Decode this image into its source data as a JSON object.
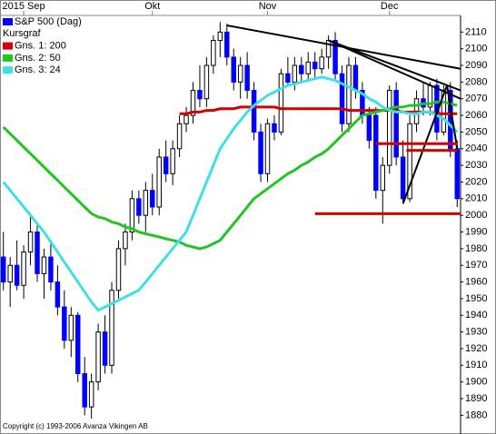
{
  "chart_data": {
    "type": "candlestick",
    "legend": [
      "S&P 500 (Dag)",
      "Kursgraf"
    ],
    "copyright": "Copyright (c) 1993-2006 Avanza Vikingen AB",
    "xlim": [
      -0.5,
      67.5
    ],
    "xticks": [
      {
        "value": 3,
        "label": "2015 Sep"
      },
      {
        "value": 22,
        "label": "Okt"
      },
      {
        "value": 39,
        "label": "Nov"
      },
      {
        "value": 57,
        "label": "Dec"
      }
    ],
    "ylim": [
      1876,
      2120
    ],
    "yticks": [
      1880,
      1890,
      1900,
      1910,
      1920,
      1930,
      1940,
      1950,
      1960,
      1970,
      1980,
      1990,
      2000,
      2010,
      2020,
      2030,
      2040,
      2050,
      2060,
      2070,
      2080,
      2090,
      2100,
      2110
    ],
    "candles": {
      "name": "S&P 500 (Dag)",
      "color": "#0000ff",
      "up_color": "#ffffff",
      "open": [
        1975,
        1960,
        1970,
        1958,
        1978,
        1990,
        1965,
        1975,
        1960,
        1945,
        1925,
        1940,
        1905,
        1885,
        1900,
        1930,
        1910,
        1955,
        1980,
        1990,
        2010,
        2000,
        2015,
        2005,
        2035,
        2025,
        2040,
        2055,
        2060,
        2075,
        2070,
        2090,
        2105,
        2110,
        2095,
        2080,
        2090,
        2075,
        2050,
        2025,
        2055,
        2050,
        2085,
        2080,
        2090,
        2085,
        2092,
        2088,
        2095,
        2105,
        2085,
        2055,
        2090,
        2075,
        2060,
        2060,
        2015,
        2030,
        2075,
        2035,
        2010,
        2055,
        2070,
        2065,
        2078,
        2050,
        2075,
        2040
      ],
      "high": [
        1990,
        1975,
        1985,
        1982,
        2000,
        1995,
        1980,
        1985,
        1970,
        1955,
        1945,
        1942,
        1915,
        1905,
        1935,
        1940,
        1960,
        1985,
        1995,
        2015,
        2015,
        2020,
        2025,
        2040,
        2045,
        2045,
        2060,
        2065,
        2080,
        2090,
        2095,
        2108,
        2116,
        2115,
        2100,
        2095,
        2098,
        2080,
        2055,
        2058,
        2060,
        2088,
        2095,
        2095,
        2095,
        2098,
        2098,
        2100,
        2108,
        2110,
        2090,
        2095,
        2095,
        2080,
        2065,
        2065,
        2035,
        2078,
        2080,
        2045,
        2060,
        2075,
        2080,
        2080,
        2082,
        2078,
        2080,
        2045
      ],
      "low": [
        1955,
        1945,
        1955,
        1950,
        1970,
        1960,
        1950,
        1955,
        1940,
        1920,
        1915,
        1900,
        1880,
        1878,
        1895,
        1905,
        1905,
        1950,
        1970,
        1985,
        1995,
        1990,
        2000,
        2000,
        2020,
        2018,
        2035,
        2050,
        2055,
        2065,
        2065,
        2085,
        2095,
        2090,
        2075,
        2070,
        2070,
        2045,
        2020,
        2020,
        2045,
        2048,
        2078,
        2075,
        2080,
        2080,
        2082,
        2085,
        2088,
        2080,
        2050,
        2050,
        2070,
        2055,
        2040,
        2010,
        1995,
        2025,
        2030,
        2008,
        2008,
        2050,
        2060,
        2060,
        2045,
        2048,
        2035,
        2005
      ],
      "close": [
        1960,
        1970,
        1958,
        1978,
        1990,
        1965,
        1975,
        1960,
        1945,
        1925,
        1940,
        1905,
        1885,
        1900,
        1930,
        1910,
        1955,
        1980,
        1990,
        2010,
        2000,
        2015,
        2005,
        2035,
        2025,
        2040,
        2055,
        2060,
        2075,
        2070,
        2090,
        2105,
        2110,
        2095,
        2080,
        2090,
        2075,
        2050,
        2025,
        2055,
        2050,
        2085,
        2080,
        2090,
        2085,
        2092,
        2088,
        2095,
        2105,
        2085,
        2055,
        2090,
        2075,
        2060,
        2045,
        2015,
        2030,
        2075,
        2035,
        2010,
        2055,
        2070,
        2065,
        2078,
        2050,
        2075,
        2040,
        2010
      ]
    },
    "series": [
      {
        "name": "Gns. 1: 200",
        "color": "#d40000",
        "values": [
          null,
          null,
          null,
          null,
          null,
          null,
          null,
          null,
          null,
          null,
          null,
          null,
          null,
          null,
          null,
          null,
          null,
          null,
          null,
          null,
          null,
          null,
          null,
          null,
          null,
          null,
          2061,
          2061,
          2062,
          2062,
          2063,
          2063,
          2064,
          2064,
          2064,
          2065,
          2065,
          2065,
          2065,
          2065,
          2065,
          2064,
          2064,
          2064,
          2064,
          2064,
          2064,
          2064,
          2064,
          2064,
          2064,
          2063,
          2063,
          2063,
          2063,
          2063,
          2063,
          2063,
          2063,
          2062,
          2062,
          2062,
          2062,
          2062,
          2061,
          2061,
          2061,
          2061
        ]
      },
      {
        "name": "Gns. 2: 50",
        "color": "#22c422",
        "values": [
          2053,
          2049,
          2045,
          2041,
          2037,
          2033,
          2029,
          2025,
          2021,
          2017,
          2013,
          2009,
          2005,
          2001,
          1999,
          1998,
          1996,
          1995,
          1993,
          1992,
          1990,
          1989,
          1988,
          1987,
          1986,
          1985,
          1984,
          1982,
          1981,
          1980,
          1981,
          1983,
          1985,
          1990,
          1995,
          2000,
          2005,
          2010,
          2013,
          2016,
          2019,
          2022,
          2025,
          2027,
          2030,
          2032,
          2035,
          2037,
          2040,
          2044,
          2048,
          2052,
          2056,
          2060,
          2061,
          2062,
          2063,
          2064,
          2065,
          2065,
          2066,
          2066,
          2067,
          2067,
          2068,
          2068,
          2067,
          2066
        ]
      },
      {
        "name": "Gns. 3: 24",
        "color": "#3de0e8",
        "values": [
          2020,
          2015,
          2010,
          2005,
          2000,
          1995,
          1990,
          1984,
          1978,
          1972,
          1966,
          1960,
          1954,
          1948,
          1943,
          1945,
          1947,
          1949,
          1951,
          1953,
          1955,
          1960,
          1965,
          1970,
          1975,
          1980,
          1985,
          1990,
          2000,
          2010,
          2020,
          2030,
          2040,
          2046,
          2052,
          2057,
          2062,
          2066,
          2069,
          2072,
          2074,
          2076,
          2078,
          2079,
          2080,
          2081,
          2082,
          2083,
          2082,
          2081,
          2079,
          2077,
          2075,
          2073,
          2070,
          2068,
          2065,
          2063,
          2062,
          2062,
          2061,
          2061,
          2062,
          2062,
          2060,
          2058,
          2054,
          2050
        ]
      }
    ],
    "trendlines": [
      {
        "color": "#000000",
        "x": [
          33,
          67.5
        ],
        "y": [
          2114,
          2088
        ]
      },
      {
        "color": "#000000",
        "x": [
          48,
          67.5
        ],
        "y": [
          2105,
          2075
        ]
      },
      {
        "color": "#000000",
        "x": [
          48,
          67.5
        ],
        "y": [
          2105,
          2070
        ]
      },
      {
        "color": "#000000",
        "x": [
          59,
          65.5
        ],
        "y": [
          2007,
          2078
        ]
      },
      {
        "color": "#000000",
        "x": [
          65.5,
          67
        ],
        "y": [
          2078,
          2040
        ]
      },
      {
        "color": "#d40000",
        "x": [
          46,
          67.5
        ],
        "y": [
          2001,
          2001
        ]
      },
      {
        "color": "#d40000",
        "x": [
          55,
          67
        ],
        "y": [
          2043,
          2043
        ]
      },
      {
        "color": "#d40000",
        "x": [
          59.5,
          67
        ],
        "y": [
          2039,
          2039
        ]
      }
    ]
  }
}
